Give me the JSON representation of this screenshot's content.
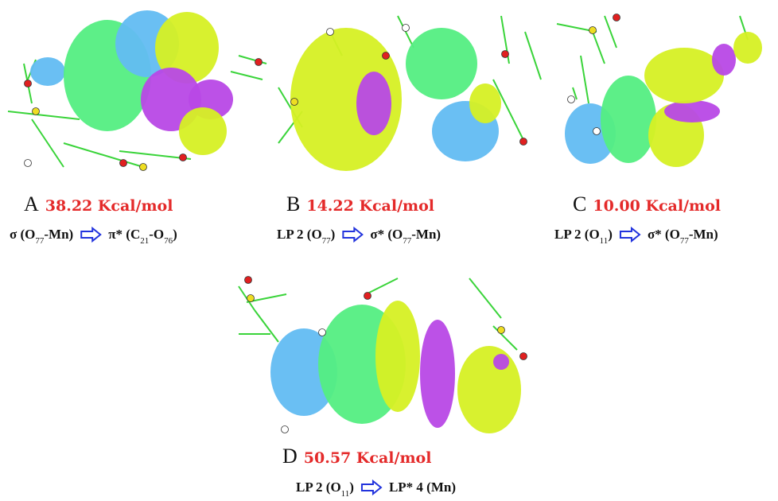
{
  "panels": [
    {
      "letter": "A",
      "energy": "38.22 Kcal/mol",
      "donor": [
        "σ (O",
        "77",
        "-Mn)"
      ],
      "acceptor": [
        "π* (C",
        "21",
        "-O",
        "76",
        ")"
      ]
    },
    {
      "letter": "B",
      "energy": "14.22 Kcal/mol",
      "donor": [
        "LP 2 (O",
        "77",
        ")"
      ],
      "acceptor": [
        "σ* (O",
        "77",
        "-Mn)"
      ]
    },
    {
      "letter": "C",
      "energy": "10.00 Kcal/mol",
      "donor": [
        "LP 2 (O",
        "11",
        ")"
      ],
      "acceptor": [
        "σ* (O",
        "77",
        "-Mn)"
      ]
    },
    {
      "letter": "D",
      "energy": "50.57 Kcal/mol",
      "donor": [
        "LP 2 (O",
        "11",
        ")"
      ],
      "acceptor": [
        "LP* 4 (Mn)"
      ]
    }
  ]
}
